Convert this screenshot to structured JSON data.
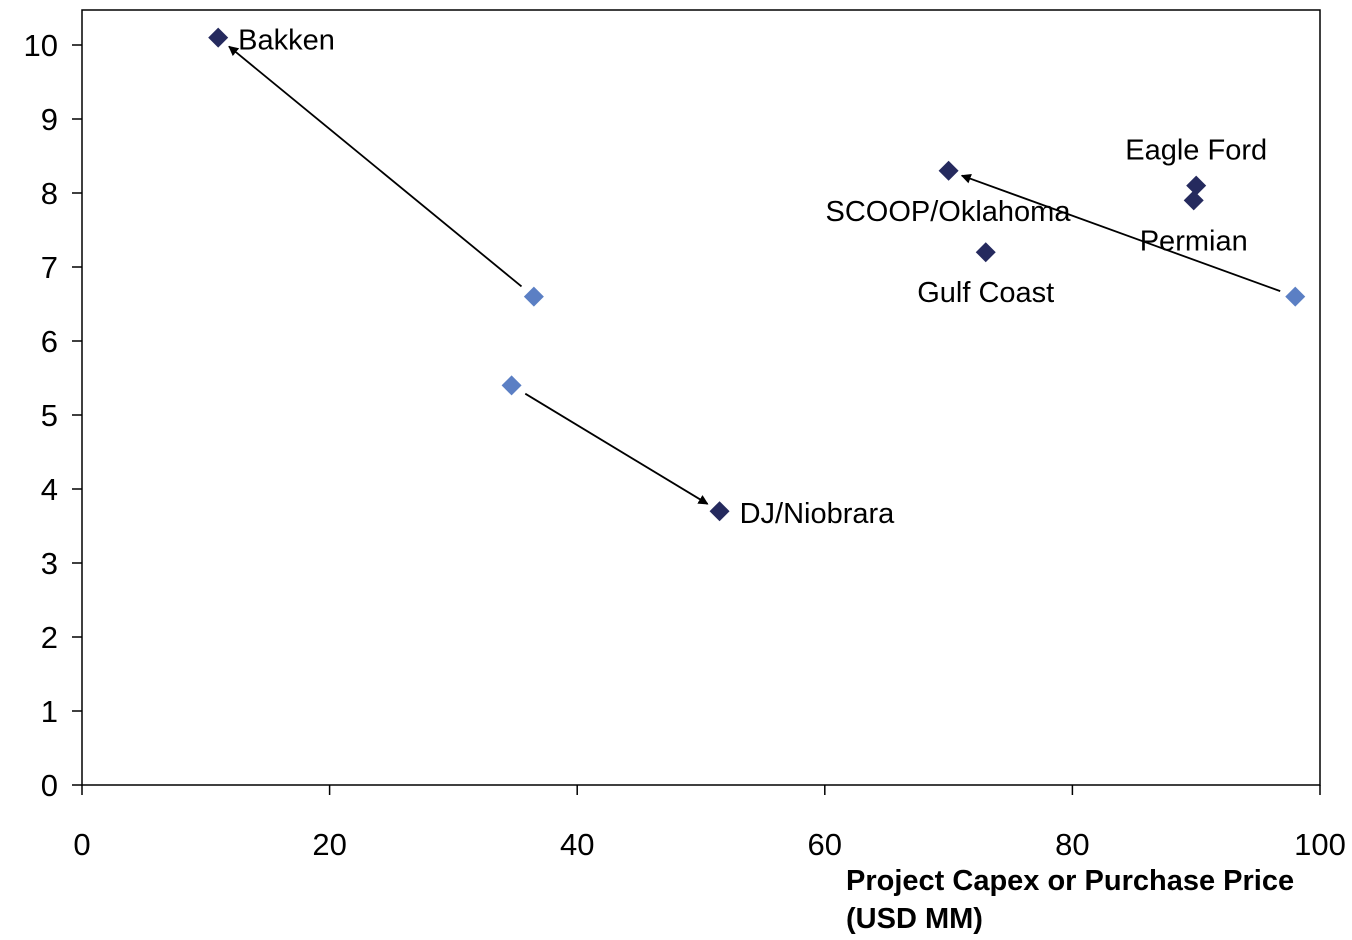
{
  "chart_data": {
    "type": "scatter",
    "title": "",
    "xlabel": "Project Capex or Purchase Price (USD MM)",
    "xlabel_lines": [
      "Project Capex or Purchase Price",
      "(USD MM)"
    ],
    "ylabel": "",
    "xlim": [
      0,
      100
    ],
    "ylim": [
      0,
      10
    ],
    "xticks": [
      0,
      20,
      40,
      60,
      80,
      100
    ],
    "yticks": [
      0,
      1,
      2,
      3,
      4,
      5,
      6,
      7,
      8,
      9,
      10
    ],
    "grid": false,
    "legend": "none",
    "colors": {
      "current": "#252a5e",
      "prior": "#5b7fc4",
      "axis": "#000000",
      "arrow": "#000000"
    },
    "series": [
      {
        "role": "current",
        "points": [
          {
            "label": "Bakken",
            "x": 11,
            "y": 10.1
          },
          {
            "label": "DJ/Niobrara",
            "x": 51.5,
            "y": 3.7
          },
          {
            "label": "SCOOP/Oklahoma",
            "x": 70,
            "y": 8.3
          },
          {
            "label": "Gulf Coast",
            "x": 73,
            "y": 7.2
          },
          {
            "label": "Eagle Ford",
            "x": 90,
            "y": 8.1
          },
          {
            "label": "Permian",
            "x": 89.8,
            "y": 7.9
          }
        ]
      },
      {
        "role": "prior",
        "points": [
          {
            "x": 36.5,
            "y": 6.6
          },
          {
            "x": 34.7,
            "y": 5.4
          },
          {
            "x": 98,
            "y": 6.6
          }
        ]
      }
    ],
    "arrows": [
      {
        "from": [
          36.5,
          6.6
        ],
        "to": [
          11,
          10.1
        ]
      },
      {
        "from": [
          34.7,
          5.4
        ],
        "to": [
          51.5,
          3.7
        ]
      },
      {
        "from": [
          98,
          6.6
        ],
        "to": [
          70,
          8.3
        ]
      }
    ]
  }
}
